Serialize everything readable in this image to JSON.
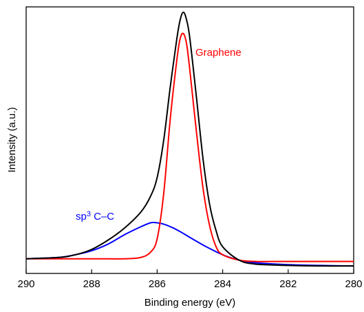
{
  "chart_data": {
    "type": "line",
    "title": "",
    "xlabel": "Binding energy (eV)",
    "ylabel": "Intensity (a.u.)",
    "xlim": [
      290,
      280
    ],
    "ylim": [
      0,
      1
    ],
    "x_reversed": true,
    "xticks": [
      290,
      288,
      286,
      284,
      282,
      280
    ],
    "grid": false,
    "y_ticks_labeled": false,
    "colors": {
      "total": "#000000",
      "graphene": "#ff0000",
      "sp3": "#0000ff"
    },
    "annotations": {
      "graphene": "Graphene",
      "sp3_prefix": "sp",
      "sp3_sup": "3",
      "sp3_suffix": " C–C"
    },
    "series": [
      {
        "key": "total",
        "x": [
          290,
          289,
          288.5,
          288,
          287.5,
          287,
          286.5,
          286.2,
          286,
          285.8,
          285.6,
          285.4,
          285.3,
          285.2,
          285.1,
          285,
          284.8,
          284.6,
          284.4,
          284.2,
          284,
          283.5,
          283,
          282,
          281,
          280
        ],
        "y": [
          0.055,
          0.06,
          0.07,
          0.09,
          0.125,
          0.17,
          0.23,
          0.29,
          0.36,
          0.5,
          0.7,
          0.88,
          0.95,
          0.98,
          0.95,
          0.88,
          0.66,
          0.43,
          0.26,
          0.16,
          0.1,
          0.05,
          0.035,
          0.03,
          0.028,
          0.028
        ]
      },
      {
        "key": "graphene",
        "x": [
          290,
          288,
          287,
          286.5,
          286.2,
          286,
          285.8,
          285.6,
          285.4,
          285.3,
          285.2,
          285.1,
          285,
          284.8,
          284.6,
          284.4,
          284.2,
          284,
          283.5,
          283,
          282,
          280
        ],
        "y": [
          0.055,
          0.055,
          0.055,
          0.06,
          0.08,
          0.13,
          0.3,
          0.58,
          0.8,
          0.88,
          0.9,
          0.86,
          0.76,
          0.53,
          0.32,
          0.18,
          0.1,
          0.07,
          0.05,
          0.045,
          0.045,
          0.045
        ]
      },
      {
        "key": "sp3",
        "x": [
          290,
          289,
          288.5,
          288,
          287.5,
          287,
          286.5,
          286.2,
          286,
          285.8,
          285.5,
          285.2,
          285,
          284.5,
          284,
          283.5,
          283,
          282,
          281,
          280
        ],
        "y": [
          0.055,
          0.06,
          0.07,
          0.085,
          0.11,
          0.145,
          0.175,
          0.19,
          0.19,
          0.185,
          0.17,
          0.15,
          0.135,
          0.1,
          0.07,
          0.05,
          0.04,
          0.033,
          0.03,
          0.028
        ]
      }
    ]
  }
}
